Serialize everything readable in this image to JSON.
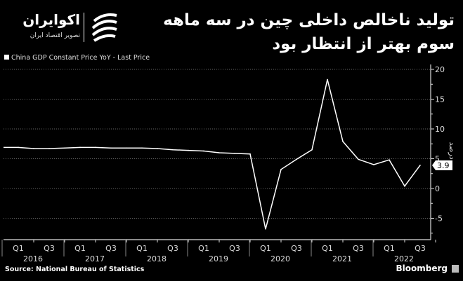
{
  "header": {
    "title": "تولید ناخالص داخلی چین در سه ماهه سوم بهتر از انتظار بود",
    "logo_name": "اکوایران",
    "logo_subtitle": "تصویر اقتصاد ایران"
  },
  "footer": {
    "source": "Source: National Bureau of Statistics",
    "brand": "Bloomberg"
  },
  "colors": {
    "background": "#000000",
    "line": "#ffffff",
    "grid": "#666666"
  },
  "chart_data": {
    "type": "line",
    "legend": [
      "China GDP Constant Price YoY - Last Price"
    ],
    "legend_placement": "top-left",
    "ylabel": "درصد",
    "ylim": [
      -8,
      20
    ],
    "yticks": [
      20,
      15,
      10,
      5,
      0,
      -5
    ],
    "grid": true,
    "y_axis_side": "right",
    "last_value_label": "3.9",
    "years": [
      "2016",
      "2017",
      "2018",
      "2019",
      "2020",
      "2021",
      "2022"
    ],
    "quarter_tick_labels": [
      "Q1",
      "Q3"
    ],
    "x": [
      "2016Q1",
      "2016Q2",
      "2016Q3",
      "2016Q4",
      "2017Q1",
      "2017Q2",
      "2017Q3",
      "2017Q4",
      "2018Q1",
      "2018Q2",
      "2018Q3",
      "2018Q4",
      "2019Q1",
      "2019Q2",
      "2019Q3",
      "2019Q4",
      "2020Q1",
      "2020Q2",
      "2020Q3",
      "2020Q4",
      "2021Q1",
      "2021Q2",
      "2021Q3",
      "2021Q4",
      "2022Q1",
      "2022Q2",
      "2022Q3"
    ],
    "series": [
      {
        "name": "China GDP Constant Price YoY - Last Price",
        "values": [
          6.9,
          6.7,
          6.7,
          6.8,
          6.9,
          6.9,
          6.8,
          6.8,
          6.8,
          6.7,
          6.5,
          6.4,
          6.3,
          6.0,
          5.9,
          5.8,
          -6.8,
          3.2,
          4.9,
          6.5,
          18.3,
          7.9,
          4.9,
          4.0,
          4.8,
          0.4,
          3.9
        ]
      }
    ]
  }
}
